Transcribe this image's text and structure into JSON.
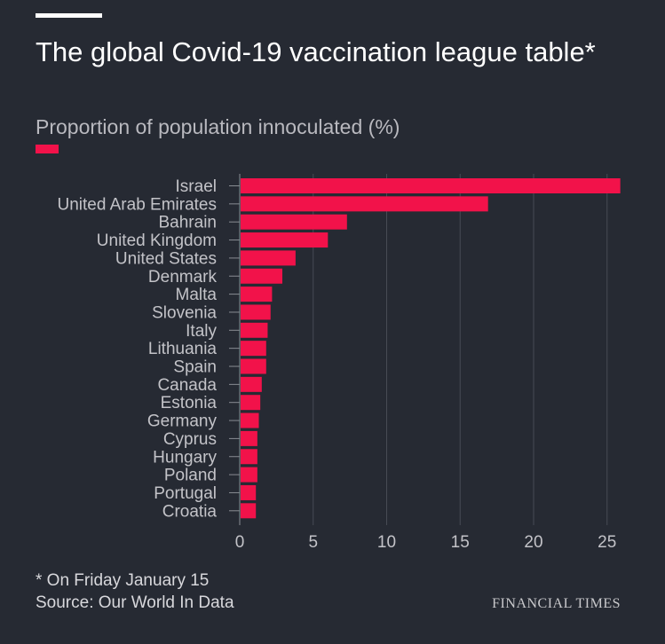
{
  "header": {
    "title": "The global Covid-19 vaccination league table*",
    "subtitle": "Proportion of population innoculated (%)"
  },
  "footer": {
    "note": "* On Friday January 15",
    "source": "Source: Our World In Data",
    "brand": "FINANCIAL TIMES"
  },
  "colors": {
    "background": "#262a33",
    "bar": "#f2124a",
    "grid": "#474b54",
    "label": "#c3c3c8"
  },
  "chart_data": {
    "type": "bar",
    "orientation": "horizontal",
    "title": "The global Covid-19 vaccination league table*",
    "subtitle": "Proportion of population innoculated (%)",
    "categories": [
      "Israel",
      "United Arab Emirates",
      "Bahrain",
      "United Kingdom",
      "United States",
      "Denmark",
      "Malta",
      "Slovenia",
      "Italy",
      "Lithuania",
      "Spain",
      "Canada",
      "Estonia",
      "Germany",
      "Cyprus",
      "Hungary",
      "Poland",
      "Portugal",
      "Croatia"
    ],
    "values": [
      25.9,
      16.9,
      7.3,
      6.0,
      3.8,
      2.9,
      2.2,
      2.1,
      1.9,
      1.8,
      1.8,
      1.5,
      1.4,
      1.3,
      1.2,
      1.2,
      1.2,
      1.1,
      1.1
    ],
    "xticks": [
      0,
      5,
      10,
      15,
      20,
      25
    ],
    "xlim": [
      0,
      26
    ],
    "grid": true,
    "legend": "top-left"
  }
}
